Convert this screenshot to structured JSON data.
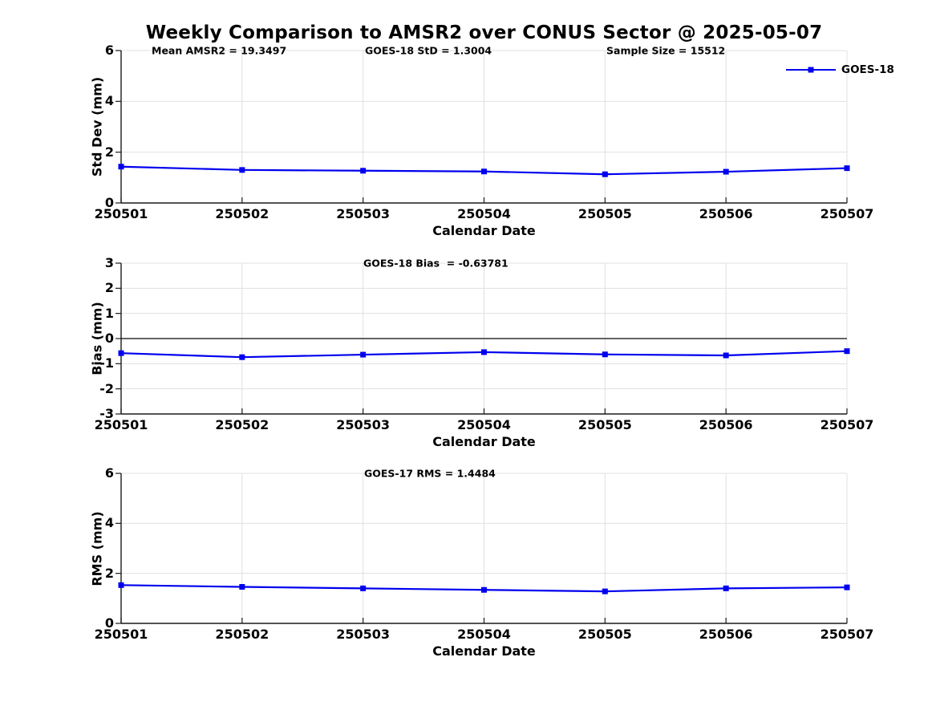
{
  "figure": {
    "title": "Weekly Comparison to AMSR2 over CONUS Sector @ 2025-05-07"
  },
  "legend": {
    "label": "GOES-18"
  },
  "colors": {
    "series": "#0000EE",
    "grid": "#E0E0E0",
    "axis": "#1A1A1A",
    "zero_line": "#4D4D4D",
    "background": "#FFFFFF",
    "text": "#000000"
  },
  "chart_data": [
    {
      "type": "line",
      "panel": "std-dev",
      "annotations": [
        "Mean AMSR2 = 19.3497",
        "GOES-18 StD = 1.3004",
        "Sample Size = 15512"
      ],
      "xlabel": "Calendar Date",
      "ylabel": "Std Dev (mm)",
      "categories": [
        "250501",
        "250502",
        "250503",
        "250504",
        "250505",
        "250506",
        "250507"
      ],
      "series": [
        {
          "name": "GOES-18",
          "values": [
            1.43,
            1.3,
            1.27,
            1.24,
            1.13,
            1.23,
            1.37
          ]
        }
      ],
      "ylim": [
        0,
        6
      ],
      "yticks": [
        0,
        2,
        4,
        6
      ],
      "grid": true,
      "zero_line": false,
      "legend_position": "top-right"
    },
    {
      "type": "line",
      "panel": "bias",
      "annotations": [
        "GOES-18 Bias  = -0.63781"
      ],
      "xlabel": "Calendar Date",
      "ylabel": "Bias (mm)",
      "categories": [
        "250501",
        "250502",
        "250503",
        "250504",
        "250505",
        "250506",
        "250507"
      ],
      "series": [
        {
          "name": "GOES-18",
          "values": [
            -0.58,
            -0.74,
            -0.64,
            -0.54,
            -0.63,
            -0.67,
            -0.5
          ]
        }
      ],
      "ylim": [
        -3,
        3
      ],
      "yticks": [
        -3,
        -2,
        -1,
        0,
        1,
        2,
        3
      ],
      "grid": true,
      "zero_line": true,
      "legend_position": "none"
    },
    {
      "type": "line",
      "panel": "rms",
      "annotations": [
        "GOES-17 RMS = 1.4484"
      ],
      "xlabel": "Calendar Date",
      "ylabel": "RMS (mm)",
      "categories": [
        "250501",
        "250502",
        "250503",
        "250504",
        "250505",
        "250506",
        "250507"
      ],
      "series": [
        {
          "name": "GOES-18",
          "values": [
            1.53,
            1.46,
            1.4,
            1.34,
            1.28,
            1.4,
            1.44
          ]
        }
      ],
      "ylim": [
        0,
        6
      ],
      "yticks": [
        0,
        2,
        4,
        6
      ],
      "grid": true,
      "zero_line": false,
      "legend_position": "none"
    }
  ]
}
